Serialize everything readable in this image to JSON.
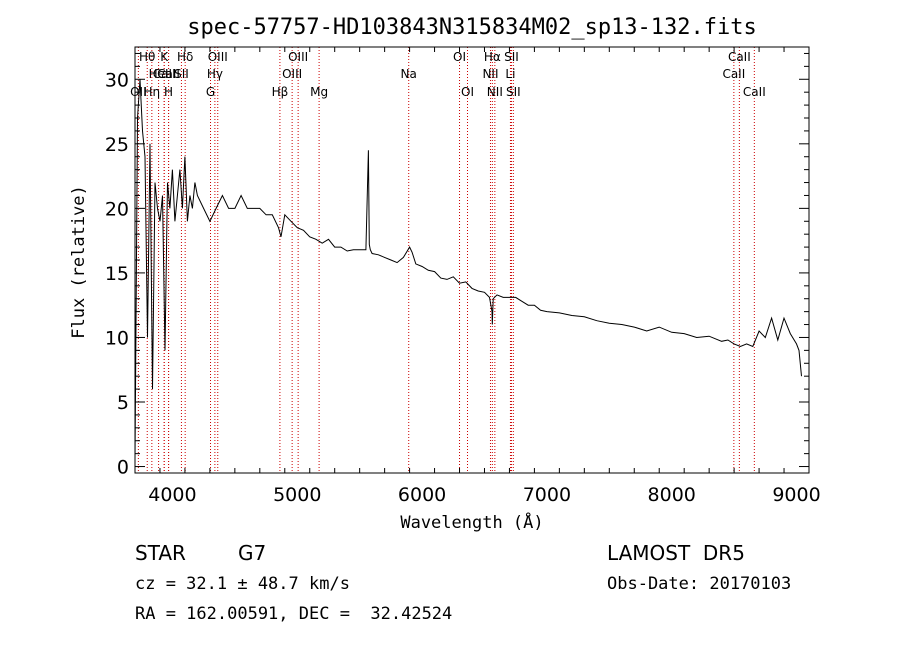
{
  "title": "spec-57757-HD103843N315834M02_sp13-132.fits",
  "info": {
    "object_class": "STAR",
    "subclass": "G7",
    "survey": "LAMOST  DR5",
    "cz": "cz = 32.1 ± 48.7 km/s",
    "obs_date": "Obs-Date: 20170103",
    "coords": "RA = 162.00591, DEC =  32.42524"
  },
  "chart_data": {
    "type": "line",
    "title": "spec-57757-HD103843N315834M02_sp13-132.fits",
    "xlabel": "Wavelength (Å)",
    "ylabel": "Flux (relative)",
    "xlim": [
      3700,
      9100
    ],
    "ylim": [
      -0.5,
      32.5
    ],
    "xticks": [
      4000,
      5000,
      6000,
      7000,
      8000,
      9000
    ],
    "yticks": [
      0,
      5,
      10,
      15,
      20,
      25,
      30
    ],
    "line_color": "#000000",
    "marker_color": "#cc0000",
    "grid": false,
    "spectral_lines": [
      {
        "label": "CaII",
        "wavelength": 3934,
        "row": 2
      },
      {
        "label": "CaII",
        "wavelength": 3969,
        "row": 2
      },
      {
        "label": "OII",
        "wavelength": 3727,
        "row": 3
      },
      {
        "label": "Hθ",
        "wavelength": 3798,
        "row": 1
      },
      {
        "label": "Hη",
        "wavelength": 3835,
        "row": 3
      },
      {
        "label": "HeI",
        "wavelength": 3889,
        "row": 2
      },
      {
        "label": "K",
        "wavelength": 3934,
        "row": 1
      },
      {
        "label": "H",
        "wavelength": 3969,
        "row": 3
      },
      {
        "label": "Hδ",
        "wavelength": 4102,
        "row": 1
      },
      {
        "label": "SII",
        "wavelength": 4072,
        "row": 2
      },
      {
        "label": "OIII",
        "wavelength": 4363,
        "row": 1
      },
      {
        "label": "Hγ",
        "wavelength": 4340,
        "row": 2
      },
      {
        "label": "G",
        "wavelength": 4305,
        "row": 3
      },
      {
        "label": "Hβ",
        "wavelength": 4861,
        "row": 3
      },
      {
        "label": "OIII",
        "wavelength": 5007,
        "row": 1
      },
      {
        "label": "OIII",
        "wavelength": 4959,
        "row": 2
      },
      {
        "label": "Mg",
        "wavelength": 5175,
        "row": 3
      },
      {
        "label": "Na",
        "wavelength": 5893,
        "row": 2
      },
      {
        "label": "OI",
        "wavelength": 6300,
        "row": 1
      },
      {
        "label": "OI",
        "wavelength": 6364,
        "row": 3
      },
      {
        "label": "Hα",
        "wavelength": 6563,
        "row": 1
      },
      {
        "label": "NII",
        "wavelength": 6548,
        "row": 2
      },
      {
        "label": "NII",
        "wavelength": 6583,
        "row": 3
      },
      {
        "label": "SII",
        "wavelength": 6716,
        "row": 1
      },
      {
        "label": "Li",
        "wavelength": 6708,
        "row": 2
      },
      {
        "label": "SII",
        "wavelength": 6731,
        "row": 3
      },
      {
        "label": "CaII",
        "wavelength": 8498,
        "row": 2
      },
      {
        "label": "CaII",
        "wavelength": 8542,
        "row": 1
      },
      {
        "label": "CaII",
        "wavelength": 8662,
        "row": 3
      }
    ],
    "series": [
      {
        "x": [
          3700,
          3720,
          3740,
          3760,
          3780,
          3800,
          3820,
          3840,
          3860,
          3880,
          3900,
          3920,
          3940,
          3960,
          3980,
          4000,
          4020,
          4040,
          4060,
          4080,
          4100,
          4120,
          4140,
          4160,
          4180,
          4200,
          4250,
          4300,
          4350,
          4400,
          4450,
          4500,
          4550,
          4600,
          4650,
          4700,
          4750,
          4800,
          4850,
          4870,
          4900,
          4950,
          5000,
          5050,
          5100,
          5150,
          5200,
          5250,
          5300,
          5350,
          5400,
          5450,
          5500,
          5550,
          5570,
          5577,
          5585,
          5600,
          5650,
          5700,
          5750,
          5800,
          5850,
          5900,
          5920,
          5950,
          6000,
          6050,
          6100,
          6150,
          6200,
          6250,
          6300,
          6350,
          6400,
          6450,
          6500,
          6540,
          6560,
          6563,
          6570,
          6600,
          6650,
          6700,
          6750,
          6800,
          6850,
          6900,
          6950,
          7000,
          7100,
          7200,
          7300,
          7400,
          7500,
          7600,
          7700,
          7800,
          7900,
          8000,
          8100,
          8200,
          8300,
          8400,
          8450,
          8500,
          8550,
          8600,
          8650,
          8700,
          8750,
          8800,
          8850,
          8900,
          8950,
          9000,
          9020,
          9040
        ],
        "y": [
          0.5,
          27,
          30,
          26,
          24,
          10,
          25,
          6,
          22,
          20,
          19,
          21,
          9,
          22,
          20,
          23,
          19,
          21,
          23,
          20,
          24,
          19,
          21,
          20,
          22,
          21,
          20,
          19,
          20,
          21,
          20,
          20,
          21,
          20,
          20,
          20,
          19.5,
          19.5,
          18.5,
          17.8,
          19.5,
          19,
          18.5,
          18.3,
          17.8,
          17.6,
          17.3,
          17.6,
          17,
          17,
          16.7,
          16.8,
          16.8,
          16.8,
          24.5,
          17.2,
          16.8,
          16.5,
          16.4,
          16.2,
          16,
          15.8,
          16.2,
          17,
          16.6,
          15.7,
          15.5,
          15.2,
          15.1,
          14.6,
          14.5,
          14.7,
          14.2,
          14.3,
          13.8,
          13.6,
          13.5,
          13.1,
          12,
          11,
          13,
          13.3,
          13.1,
          13.1,
          13.1,
          12.8,
          12.5,
          12.5,
          12.1,
          12,
          11.9,
          11.7,
          11.6,
          11.3,
          11.1,
          11,
          10.8,
          10.5,
          10.8,
          10.4,
          10.3,
          10,
          10.1,
          9.7,
          9.8,
          9.5,
          9.3,
          9.5,
          9.3,
          10.5,
          10,
          11.5,
          9.8,
          11.5,
          10.3,
          9.5,
          9,
          7
        ]
      }
    ]
  }
}
